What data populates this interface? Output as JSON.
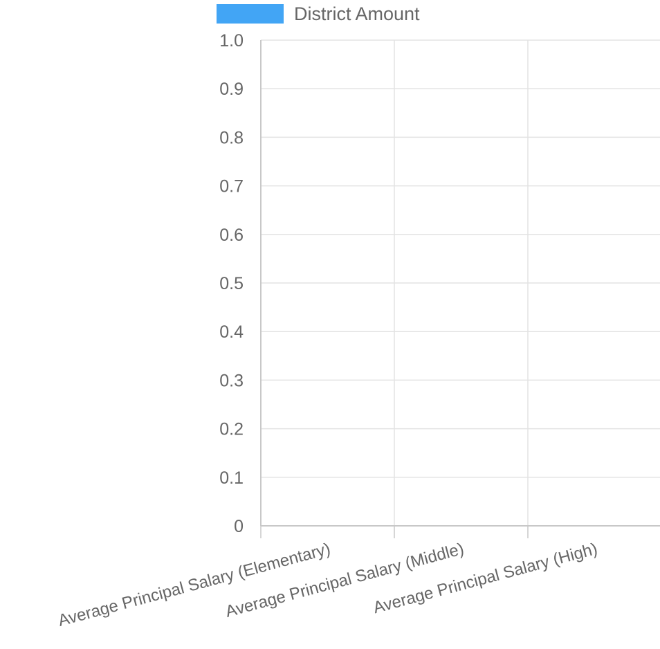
{
  "chart_data": {
    "type": "bar",
    "categories": [
      "Average Principal Salary (Elementary)",
      "Average Principal Salary (Middle)",
      "Average Principal Salary (High)"
    ],
    "series": [
      {
        "name": "District Amount",
        "color": "#42a5f5",
        "values": [
          0,
          0,
          0
        ]
      }
    ],
    "ylim": [
      0,
      1.0
    ],
    "y_ticks": [
      "0",
      "0.1",
      "0.2",
      "0.3",
      "0.4",
      "0.5",
      "0.6",
      "0.7",
      "0.8",
      "0.9",
      "1.0"
    ],
    "grid": true,
    "legend_position": "top"
  }
}
